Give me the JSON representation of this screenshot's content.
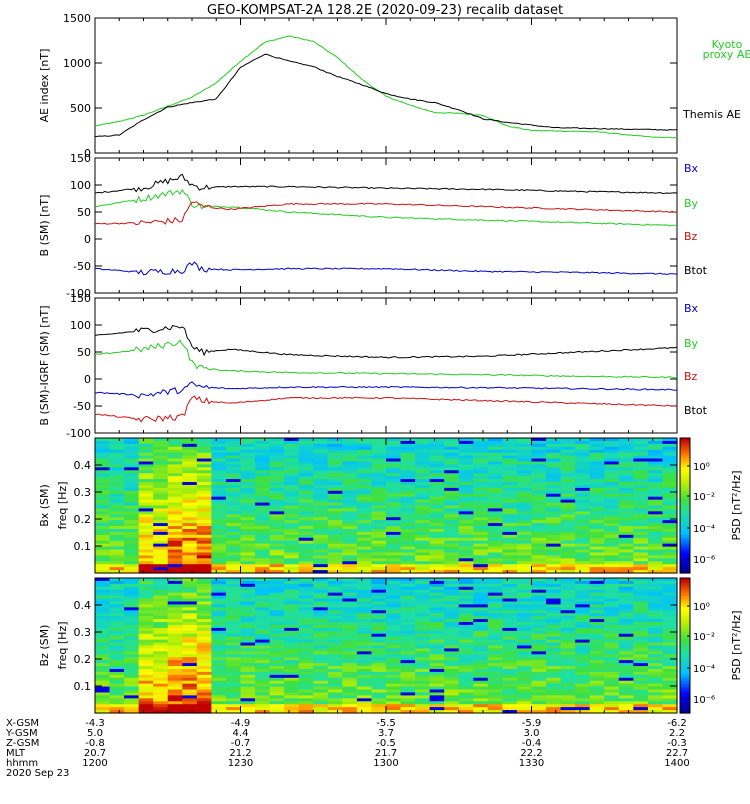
{
  "title": "GEO-KOMPSAT-2A 128.2E (2020-09-23) recalib dataset",
  "colors": {
    "black": "#000000",
    "green": "#22cc22",
    "red": "#cc1111",
    "blue": "#0000cc"
  },
  "chart_data": [
    {
      "type": "line",
      "ylabel": "AE index [nT]",
      "ylim": [
        0,
        1500
      ],
      "yticks": [
        "0",
        "500",
        "1000",
        "1500"
      ],
      "ytick_values": [
        0,
        500,
        1000,
        1500
      ],
      "xlim": [
        0,
        120
      ],
      "series": [
        {
          "name": "Kyoto proxy AE",
          "color": "#22cc22",
          "x": [
            0,
            5,
            10,
            15,
            20,
            25,
            30,
            35,
            40,
            45,
            50,
            55,
            60,
            65,
            70,
            75,
            80,
            85,
            90,
            95,
            100,
            105,
            110,
            115,
            120
          ],
          "values": [
            300,
            350,
            420,
            520,
            620,
            780,
            1020,
            1230,
            1300,
            1240,
            1060,
            820,
            630,
            530,
            450,
            440,
            420,
            300,
            250,
            245,
            240,
            230,
            200,
            175,
            170
          ]
        },
        {
          "name": "Themis AE",
          "color": "#000000",
          "x": [
            0,
            5,
            10,
            15,
            20,
            25,
            30,
            35,
            40,
            45,
            50,
            55,
            60,
            65,
            70,
            75,
            80,
            85,
            90,
            95,
            100,
            105,
            110,
            115,
            120
          ],
          "values": [
            180,
            200,
            370,
            510,
            560,
            600,
            950,
            1100,
            1020,
            960,
            850,
            760,
            660,
            600,
            560,
            480,
            380,
            340,
            310,
            280,
            275,
            270,
            265,
            260,
            255
          ]
        }
      ],
      "legend": [
        "Kyoto proxy AE",
        "Themis AE"
      ]
    },
    {
      "type": "line",
      "ylabel": "B (SM) [nT]",
      "ylim": [
        -100,
        150
      ],
      "yticks": [
        "-100",
        "-50",
        "0",
        "50",
        "100",
        "150"
      ],
      "ytick_values": [
        -100,
        -50,
        0,
        50,
        100,
        150
      ],
      "xlim": [
        0,
        120
      ],
      "series": [
        {
          "name": "Btot",
          "color": "#000000",
          "x": [
            0,
            10,
            18,
            20,
            22,
            28,
            40,
            60,
            80,
            100,
            120
          ],
          "values": [
            85,
            95,
            115,
            100,
            95,
            97,
            97,
            94,
            92,
            88,
            85
          ]
        },
        {
          "name": "By",
          "color": "#22cc22",
          "x": [
            0,
            10,
            18,
            20,
            22,
            28,
            40,
            60,
            80,
            100,
            120
          ],
          "values": [
            60,
            75,
            90,
            65,
            60,
            60,
            50,
            40,
            35,
            30,
            25
          ]
        },
        {
          "name": "Bz",
          "color": "#cc1111",
          "x": [
            0,
            10,
            18,
            20,
            22,
            28,
            40,
            60,
            80,
            100,
            120
          ],
          "values": [
            28,
            30,
            35,
            70,
            60,
            55,
            65,
            65,
            60,
            55,
            50
          ]
        },
        {
          "name": "Bx",
          "color": "#0000cc",
          "x": [
            0,
            10,
            18,
            20,
            22,
            28,
            40,
            60,
            80,
            100,
            120
          ],
          "values": [
            -55,
            -62,
            -58,
            -45,
            -55,
            -57,
            -55,
            -55,
            -60,
            -62,
            -65
          ]
        }
      ],
      "legend": [
        "Bx",
        "By",
        "Bz",
        "Btot"
      ]
    },
    {
      "type": "line",
      "ylabel": "B (SM)-IGRF (SM) [nT]",
      "ylim": [
        -100,
        150
      ],
      "yticks": [
        "-100",
        "-50",
        "0",
        "50",
        "100",
        "150"
      ],
      "ytick_values": [
        -100,
        -50,
        0,
        50,
        100,
        150
      ],
      "xlim": [
        0,
        120
      ],
      "series": [
        {
          "name": "Btot",
          "color": "#000000",
          "x": [
            0,
            10,
            18,
            20,
            22,
            28,
            40,
            60,
            80,
            100,
            120
          ],
          "values": [
            80,
            90,
            98,
            60,
            50,
            55,
            45,
            40,
            42,
            50,
            58
          ]
        },
        {
          "name": "By",
          "color": "#22cc22",
          "x": [
            0,
            10,
            18,
            20,
            22,
            28,
            40,
            60,
            80,
            100,
            120
          ],
          "values": [
            45,
            55,
            70,
            30,
            20,
            15,
            12,
            10,
            8,
            5,
            3
          ]
        },
        {
          "name": "Bx",
          "color": "#0000cc",
          "x": [
            0,
            10,
            18,
            20,
            22,
            28,
            40,
            60,
            80,
            100,
            120
          ],
          "values": [
            -25,
            -30,
            -20,
            -10,
            -15,
            -18,
            -15,
            -15,
            -16,
            -18,
            -20
          ]
        },
        {
          "name": "Bz",
          "color": "#cc1111",
          "x": [
            0,
            10,
            18,
            20,
            22,
            28,
            40,
            60,
            80,
            100,
            120
          ],
          "values": [
            -65,
            -75,
            -70,
            -35,
            -40,
            -45,
            -35,
            -35,
            -40,
            -45,
            -50
          ]
        }
      ],
      "legend": [
        "Bx",
        "By",
        "Bz",
        "Btot"
      ]
    },
    {
      "type": "heatmap",
      "ylabel": "Bx (SM)",
      "ylabel2": "freq [Hz]",
      "yticks": [
        "0.1",
        "0.2",
        "0.3",
        "0.4"
      ],
      "ytick_values": [
        0.1,
        0.2,
        0.3,
        0.4
      ],
      "ylim": [
        0,
        0.5
      ],
      "colorbar_label": "PSD [nT²/Hz]",
      "colorbar_ticks": [
        "10⁰",
        "10⁻²",
        "10⁻⁴",
        "10⁻⁶"
      ]
    },
    {
      "type": "heatmap",
      "ylabel": "Bz (SM)",
      "ylabel2": "freq [Hz]",
      "yticks": [
        "0.1",
        "0.2",
        "0.3",
        "0.4"
      ],
      "ytick_values": [
        0.1,
        0.2,
        0.3,
        0.4
      ],
      "ylim": [
        0,
        0.5
      ],
      "colorbar_label": "PSD [nT²/Hz]",
      "colorbar_ticks": [
        "10⁰",
        "10⁻²",
        "10⁻⁴",
        "10⁻⁶"
      ]
    }
  ],
  "legends": {
    "ae": [
      {
        "text": "Kyoto",
        "color": "#22cc22"
      },
      {
        "text": "proxy AE",
        "color": "#22cc22"
      },
      {
        "text": "Themis AE",
        "color": "#000000"
      }
    ],
    "field": [
      {
        "text": "Bx",
        "color": "#0000cc"
      },
      {
        "text": "By",
        "color": "#22cc22"
      },
      {
        "text": "Bz",
        "color": "#cc1111"
      },
      {
        "text": "Btot",
        "color": "#000000"
      }
    ]
  },
  "x_axis_table": {
    "row_labels": [
      "X-GSM",
      "Y-GSM",
      "Z-GSM",
      "MLT",
      "hhmm",
      "2020 Sep 23"
    ],
    "columns": [
      [
        "-4.3",
        "5.0",
        "-0.8",
        "20.7",
        "1200"
      ],
      [
        "-4.9",
        "4.4",
        "-0.7",
        "21.2",
        "1230"
      ],
      [
        "-5.5",
        "3.7",
        "-0.5",
        "21.7",
        "1300"
      ],
      [
        "-5.9",
        "3.0",
        "-0.4",
        "22.2",
        "1330"
      ],
      [
        "-6.2",
        "2.2",
        "-0.3",
        "22.7",
        "1400"
      ]
    ]
  }
}
